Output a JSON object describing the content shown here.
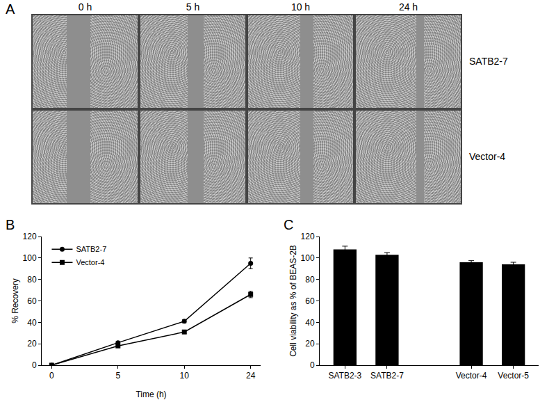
{
  "figure": {
    "panel_labels": [
      "A",
      "B",
      "C"
    ],
    "image_panel": {
      "columns": [
        "0 h",
        "5 h",
        "10 h",
        "24 h"
      ],
      "rows": [
        "SATB2-7",
        "Vector-4"
      ]
    }
  },
  "chart_data": [
    {
      "type": "line",
      "x_label": "Time (h)",
      "y_label": "% Recovery",
      "categories": [
        "0",
        "5",
        "10",
        "24"
      ],
      "series": [
        {
          "name": "SATB2-7",
          "color": "#000000",
          "marker": "circle",
          "values": [
            0,
            21,
            41,
            95
          ],
          "errors": [
            0,
            1,
            1.5,
            5
          ]
        },
        {
          "name": "Vector-4",
          "color": "#000000",
          "marker": "square",
          "values": [
            0,
            18,
            31,
            66
          ],
          "errors": [
            0,
            1,
            1.5,
            3
          ]
        }
      ],
      "ylim": [
        0,
        120
      ],
      "yticks": [
        0,
        20,
        40,
        60,
        80,
        100,
        120
      ],
      "grid": false,
      "legend": "upper left"
    },
    {
      "type": "bar",
      "y_label": "Cell viability as % of BEAS-2B",
      "categories": [
        "SATB2-3",
        "SATB2-7",
        null,
        "Vector-4",
        "Vector-5"
      ],
      "values": [
        108,
        103,
        null,
        96,
        94
      ],
      "errors": [
        3,
        2,
        null,
        1.5,
        2
      ],
      "color": "#000000",
      "ylim": [
        0,
        120
      ],
      "yticks": [
        0,
        20,
        40,
        60,
        80,
        100,
        120
      ],
      "grid": false
    }
  ]
}
